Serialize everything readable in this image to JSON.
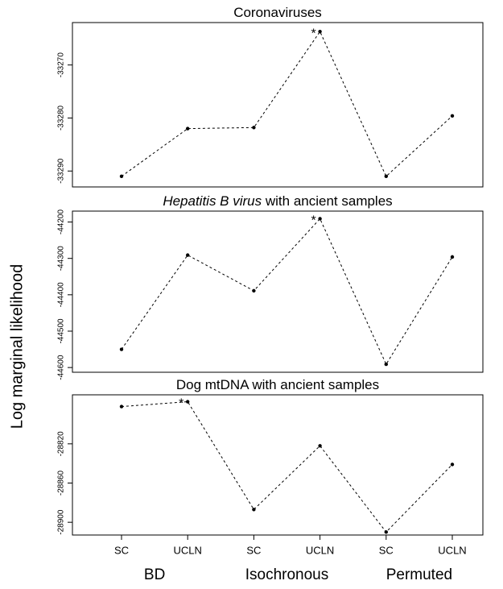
{
  "y_label": "Log marginal likelihood",
  "groups": [
    "BD",
    "Isochronous",
    "Permuted"
  ],
  "chart_data": [
    {
      "type": "line",
      "title": "Coronaviruses",
      "values": [
        -33291,
        -33282,
        -33281.8,
        -33263.7,
        -33291,
        -33279.6
      ],
      "ylim": [
        -33293,
        -33262
      ],
      "yticks": [
        -33270,
        -33280,
        -33290
      ],
      "annotation": {
        "text": "*",
        "index": 3
      },
      "color": "#000000"
    },
    {
      "type": "line",
      "title": "Hepatitis B virus",
      "title_rest": " with ancient samples",
      "values": [
        -44550,
        -44291,
        -44389,
        -44191,
        -44591,
        -44296
      ],
      "ylim": [
        -44613,
        -44170
      ],
      "yticks": [
        -44200,
        -44300,
        -44400,
        -44500,
        -44600
      ],
      "annotation": {
        "text": "*",
        "index": 3
      },
      "color": "#000000"
    },
    {
      "type": "line",
      "title": "Dog mtDNA with ancient samples",
      "categories": [
        "SC",
        "UCLN",
        "SC",
        "UCLN",
        "SC",
        "UCLN"
      ],
      "values": [
        -28782,
        -28777,
        -28887,
        -28822,
        -28910,
        -28841
      ],
      "ylim": [
        -28913,
        -28770
      ],
      "yticks": [
        -28820,
        -28860,
        -28900
      ],
      "annotation": {
        "text": "*",
        "index": 1
      },
      "color": "#000000"
    }
  ]
}
